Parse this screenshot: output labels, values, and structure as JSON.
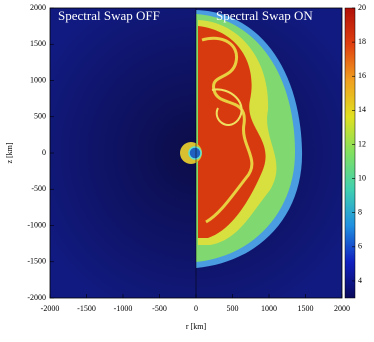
{
  "chart_data": {
    "type": "heatmap",
    "annotations": [
      "Spectral Swap OFF",
      "Spectral Swap ON"
    ],
    "x_label": "r [km]",
    "y_label": "z [km]",
    "xlim": [
      -2000,
      2000
    ],
    "ylim": [
      -2000,
      2000
    ],
    "xticks": [
      -2000,
      -1500,
      -1000,
      -500,
      0,
      500,
      1000,
      1500,
      2000
    ],
    "yticks": [
      -2000,
      -1500,
      -1000,
      -500,
      0,
      500,
      1000,
      1500,
      2000
    ],
    "clim": [
      3,
      20
    ],
    "cticks": [
      4,
      6,
      8,
      10,
      12,
      14,
      16,
      18,
      20
    ],
    "colormap": [
      "#0a0a5a",
      "#1020c0",
      "#2090e0",
      "#40d0b0",
      "#80e060",
      "#e0e020",
      "#f0a020",
      "#e04010",
      "#b01008"
    ]
  }
}
